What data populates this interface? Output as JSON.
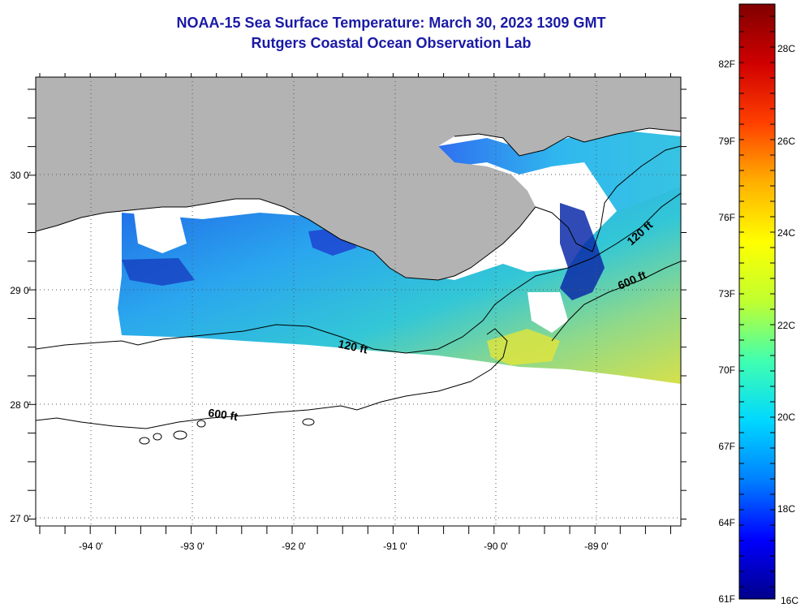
{
  "title": {
    "line1": "NOAA-15 Sea Surface Temperature:  March 30, 2023 1309 GMT",
    "line2": "Rutgers Coastal Ocean Observation Lab"
  },
  "map": {
    "x_ticks": [
      "-94 0'",
      "-93 0'",
      "-92 0'",
      "-91 0'",
      "-90 0'",
      "-89 0'"
    ],
    "y_ticks": [
      "30 0'",
      "29 0'",
      "28 0'",
      "27 0'"
    ],
    "contours": [
      {
        "label": "120 ft"
      },
      {
        "label": "600 ft"
      },
      {
        "label": "120 ft"
      },
      {
        "label": "600 ft"
      }
    ],
    "colors": {
      "land": "#b3b3b3",
      "nodata": "#ffffff",
      "ocean_cold": "#0a1a8c",
      "ocean_warm": "#d8e23a"
    }
  },
  "colorbar": {
    "fahrenheit": [
      "82F",
      "79F",
      "76F",
      "73F",
      "70F",
      "67F",
      "64F",
      "61F"
    ],
    "celsius": [
      "28C",
      "26C",
      "24C",
      "22C",
      "20C",
      "18C",
      "16C"
    ],
    "stops": [
      "#00008a",
      "#0000ff",
      "#0080ff",
      "#00d8ff",
      "#40ffb0",
      "#c0ff30",
      "#ffff00",
      "#ffb000",
      "#ff4000",
      "#d00000",
      "#800000"
    ]
  }
}
